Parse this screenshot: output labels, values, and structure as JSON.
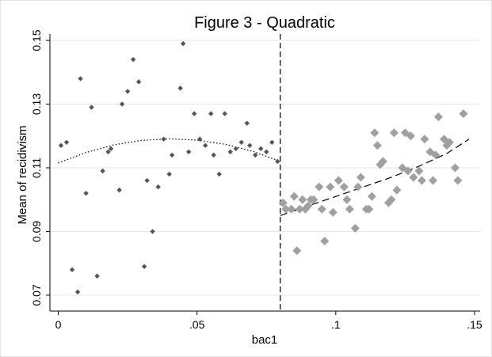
{
  "chart_data": {
    "type": "scatter",
    "title": "Figure 3 - Quadratic",
    "xlabel": "bac1",
    "ylabel": "Mean of recidivism",
    "xlim": [
      -0.003,
      0.152
    ],
    "ylim": [
      0.065,
      0.152
    ],
    "x_ticks": [
      0,
      0.05,
      0.1,
      0.15
    ],
    "x_tick_labels": [
      "0",
      ".05",
      ".1",
      ".15"
    ],
    "y_ticks": [
      0.07,
      0.09,
      0.11,
      0.13,
      0.15
    ],
    "y_tick_labels": [
      "0.07",
      "0.09",
      "0.11",
      "0.13",
      "0.15"
    ],
    "grid": true,
    "legend": "none",
    "cutoff": 0.08,
    "series": [
      {
        "marker": "small-diamond",
        "color": "#555555",
        "points": [
          [
            0.001,
            0.117
          ],
          [
            0.003,
            0.118
          ],
          [
            0.005,
            0.078
          ],
          [
            0.007,
            0.071
          ],
          [
            0.008,
            0.138
          ],
          [
            0.01,
            0.102
          ],
          [
            0.012,
            0.129
          ],
          [
            0.014,
            0.076
          ],
          [
            0.016,
            0.109
          ],
          [
            0.018,
            0.115
          ],
          [
            0.019,
            0.116
          ],
          [
            0.022,
            0.103
          ],
          [
            0.023,
            0.13
          ],
          [
            0.025,
            0.134
          ],
          [
            0.027,
            0.144
          ],
          [
            0.029,
            0.137
          ],
          [
            0.031,
            0.079
          ],
          [
            0.032,
            0.106
          ],
          [
            0.034,
            0.09
          ],
          [
            0.036,
            0.104
          ],
          [
            0.038,
            0.119
          ],
          [
            0.04,
            0.108
          ],
          [
            0.041,
            0.114
          ],
          [
            0.044,
            0.135
          ],
          [
            0.045,
            0.149
          ],
          [
            0.047,
            0.115
          ],
          [
            0.049,
            0.127
          ],
          [
            0.051,
            0.119
          ],
          [
            0.053,
            0.117
          ],
          [
            0.055,
            0.127
          ],
          [
            0.056,
            0.114
          ],
          [
            0.058,
            0.108
          ],
          [
            0.06,
            0.127
          ],
          [
            0.062,
            0.115
          ],
          [
            0.064,
            0.116
          ],
          [
            0.066,
            0.118
          ],
          [
            0.068,
            0.124
          ],
          [
            0.069,
            0.117
          ],
          [
            0.071,
            0.114
          ],
          [
            0.073,
            0.116
          ],
          [
            0.075,
            0.115
          ],
          [
            0.077,
            0.118
          ],
          [
            0.079,
            0.112
          ]
        ]
      },
      {
        "marker": "large-diamond",
        "color": "#a0a0a0",
        "points": [
          [
            0.081,
            0.099
          ],
          [
            0.082,
            0.097
          ],
          [
            0.084,
            0.097
          ],
          [
            0.085,
            0.101
          ],
          [
            0.086,
            0.084
          ],
          [
            0.087,
            0.097
          ],
          [
            0.088,
            0.1
          ],
          [
            0.089,
            0.097
          ],
          [
            0.09,
            0.098
          ],
          [
            0.091,
            0.1
          ],
          [
            0.092,
            0.1
          ],
          [
            0.094,
            0.104
          ],
          [
            0.095,
            0.097
          ],
          [
            0.096,
            0.087
          ],
          [
            0.098,
            0.104
          ],
          [
            0.099,
            0.096
          ],
          [
            0.101,
            0.106
          ],
          [
            0.103,
            0.104
          ],
          [
            0.104,
            0.1
          ],
          [
            0.105,
            0.097
          ],
          [
            0.107,
            0.091
          ],
          [
            0.108,
            0.104
          ],
          [
            0.109,
            0.107
          ],
          [
            0.111,
            0.097
          ],
          [
            0.112,
            0.097
          ],
          [
            0.113,
            0.101
          ],
          [
            0.114,
            0.121
          ],
          [
            0.115,
            0.117
          ],
          [
            0.116,
            0.111
          ],
          [
            0.117,
            0.112
          ],
          [
            0.119,
            0.099
          ],
          [
            0.12,
            0.1
          ],
          [
            0.121,
            0.121
          ],
          [
            0.122,
            0.103
          ],
          [
            0.124,
            0.11
          ],
          [
            0.125,
            0.121
          ],
          [
            0.126,
            0.109
          ],
          [
            0.127,
            0.12
          ],
          [
            0.128,
            0.107
          ],
          [
            0.13,
            0.109
          ],
          [
            0.131,
            0.106
          ],
          [
            0.132,
            0.119
          ],
          [
            0.134,
            0.115
          ],
          [
            0.135,
            0.106
          ],
          [
            0.136,
            0.114
          ],
          [
            0.137,
            0.126
          ],
          [
            0.139,
            0.119
          ],
          [
            0.14,
            0.117
          ],
          [
            0.141,
            0.118
          ],
          [
            0.143,
            0.11
          ],
          [
            0.144,
            0.106
          ],
          [
            0.146,
            0.127
          ]
        ]
      }
    ],
    "fits": [
      {
        "style": "dotted",
        "color": "#000000",
        "x": [
          0.0,
          0.01,
          0.02,
          0.03,
          0.04,
          0.05,
          0.06,
          0.07,
          0.08
        ],
        "y": [
          0.1115,
          0.1148,
          0.1172,
          0.1186,
          0.1191,
          0.1187,
          0.1174,
          0.1152,
          0.112
        ]
      },
      {
        "style": "dashed",
        "color": "#000000",
        "x": [
          0.08,
          0.09,
          0.1,
          0.11,
          0.12,
          0.13,
          0.14,
          0.148
        ],
        "y": [
          0.095,
          0.098,
          0.101,
          0.104,
          0.107,
          0.1105,
          0.1145,
          0.119
        ]
      }
    ]
  }
}
